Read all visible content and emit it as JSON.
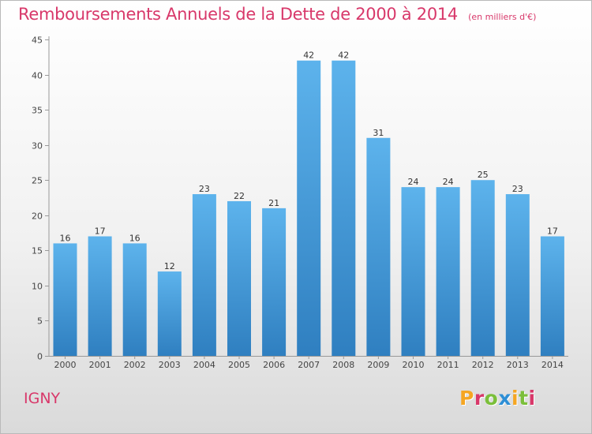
{
  "header": {
    "title": "Remboursements Annuels de la Dette de 2000 à 2014",
    "unit": "(en milliers d'€)"
  },
  "footer": {
    "commune": "IGNY",
    "logo": "Proxiti",
    "logo_colors": [
      "#f5a623",
      "#d8386a",
      "#7bbf3a",
      "#2e8fd6",
      "#f5a623",
      "#7bbf3a",
      "#d8386a"
    ]
  },
  "chart_data": {
    "type": "bar",
    "title": "Remboursements Annuels de la Dette de 2000 à 2014",
    "subtitle": "(en milliers d'€)",
    "categories": [
      "2000",
      "2001",
      "2002",
      "2003",
      "2004",
      "2005",
      "2006",
      "2007",
      "2008",
      "2009",
      "2010",
      "2011",
      "2012",
      "2013",
      "2014"
    ],
    "values": [
      16,
      17,
      16,
      12,
      23,
      22,
      21,
      42,
      42,
      31,
      24,
      24,
      25,
      23,
      17
    ],
    "yticks": [
      0,
      5,
      10,
      15,
      20,
      25,
      30,
      35,
      40,
      45
    ],
    "ylim": [
      0,
      45
    ],
    "grid": false,
    "bar_color_top": "#5db3ec",
    "bar_color_bottom": "#2f7fc0",
    "label_color": "#333333"
  }
}
